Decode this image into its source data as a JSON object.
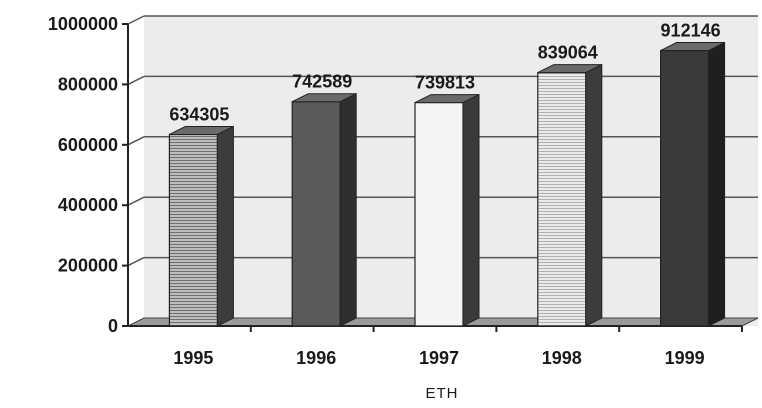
{
  "chart_data": {
    "type": "bar",
    "categories": [
      "1995",
      "1996",
      "1997",
      "1998",
      "1999"
    ],
    "values": [
      634305,
      742589,
      739813,
      839064,
      912146
    ],
    "data_labels": [
      "634305",
      "742589",
      "739813",
      "839064",
      "912146"
    ],
    "xlabel": "ETH",
    "ylabel": "",
    "ylim": [
      0,
      1000000
    ],
    "yticks": [
      0,
      200000,
      400000,
      600000,
      800000,
      1000000
    ],
    "ytick_labels": [
      "0",
      "200000",
      "400000",
      "600000",
      "800000",
      "1000000"
    ],
    "grid": true,
    "legend": "none",
    "style": "3d-column",
    "colors": {
      "bar_fills": [
        "#8f8f8f",
        "#5a5a5a",
        "#f4f4f4",
        "#b9b9b9",
        "#3a3a3a"
      ],
      "bar_sides": [
        "#3c3c3c",
        "#2f2f2f",
        "#3a3a3a",
        "#3c3c3c",
        "#1f1f1f"
      ],
      "gridline": "#555555",
      "wall": "#ececec",
      "floor": "#9a9a9a",
      "text": "#1a1a1a"
    }
  }
}
